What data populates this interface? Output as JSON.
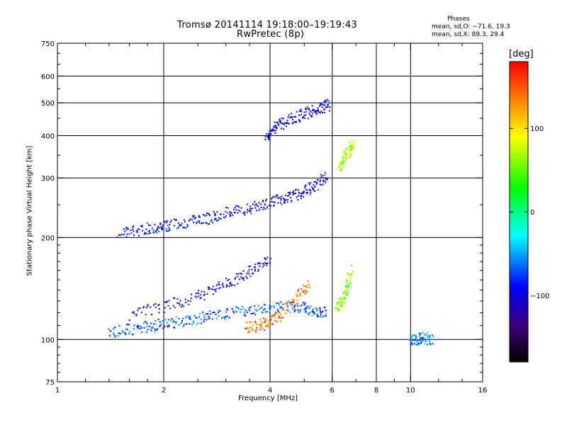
{
  "header": {
    "title_line1": "Tromsø 20141114 19:18:00–19:19:43",
    "title_line2": "RwPretec (8p)",
    "phases_title": "Phases",
    "phases_o": "mean, sd,O: −71.6, 19.3",
    "phases_x": "mean, sd,X:  89.3, 29.4"
  },
  "colorbar": {
    "label": "[deg]",
    "ticks": [
      "100",
      "0",
      "−100"
    ],
    "tick_values": [
      100,
      0,
      -100
    ],
    "range": [
      -180,
      180
    ]
  },
  "chart_data": {
    "type": "scatter",
    "xlabel": "Frequency [MHz]",
    "ylabel": "Stationary phase Virtual Height [km]",
    "x_scale": "log",
    "y_scale": "log",
    "xlim": [
      1,
      16
    ],
    "ylim": [
      75,
      750
    ],
    "x_ticks": [
      1,
      2,
      4,
      6,
      8,
      10,
      16
    ],
    "x_tick_labels": [
      "1",
      "2",
      "4",
      "6",
      "8",
      "10",
      "16"
    ],
    "y_ticks": [
      75,
      100,
      200,
      300,
      400,
      500,
      600,
      750
    ],
    "y_tick_labels": [
      "75",
      "100",
      "200",
      "300",
      "400",
      "500",
      "600",
      "750"
    ],
    "grid_x": [
      2,
      4,
      6,
      8,
      10
    ],
    "grid_y": [
      100,
      200,
      300,
      400,
      500,
      600
    ],
    "grid": true,
    "color_scale": "phase in degrees, rainbow from black (−180) through blue, cyan, green, yellow to red (+180)",
    "trace_segments": [
      {
        "name": "",
        "phase": -95,
        "x": [
          1.5,
          1.7,
          1.9,
          2.1,
          2.4,
          2.7,
          3.0,
          3.4,
          3.8,
          4.2,
          4.6,
          5.0,
          5.4,
          5.8
        ],
        "y": [
          207,
          210,
          214,
          217,
          223,
          228,
          236,
          242,
          250,
          257,
          264,
          272,
          285,
          305
        ]
      },
      {
        "name": "",
        "phase": -70,
        "x": [
          1.4,
          1.6,
          1.8,
          2.0,
          2.3,
          2.6,
          3.0,
          3.5,
          4.0,
          4.5,
          5.0,
          5.4,
          5.8
        ],
        "y": [
          105,
          107,
          109,
          111,
          113,
          116,
          119,
          122,
          124,
          125,
          124,
          121,
          120
        ]
      },
      {
        "name": "",
        "phase": -110,
        "x": [
          1.6,
          2.0,
          2.4,
          2.8,
          3.2,
          3.6,
          4.0
        ],
        "y": [
          118,
          125,
          132,
          140,
          150,
          162,
          175
        ]
      },
      {
        "name": "",
        "phase": -100,
        "x": [
          3.9,
          4.1,
          4.4,
          4.8,
          5.2,
          5.6,
          5.9
        ],
        "y": [
          390,
          420,
          440,
          455,
          470,
          480,
          495
        ]
      },
      {
        "name": "",
        "phase": 60,
        "x": [
          6.2,
          6.4,
          6.6,
          6.8
        ],
        "y": [
          125,
          128,
          140,
          160
        ]
      },
      {
        "name": "",
        "phase": 70,
        "x": [
          6.3,
          6.5,
          6.7,
          6.9
        ],
        "y": [
          320,
          340,
          360,
          380
        ]
      },
      {
        "name": "",
        "phase": 140,
        "x": [
          3.4,
          3.7,
          4.0,
          4.3,
          4.8,
          5.2
        ],
        "y": [
          108,
          110,
          112,
          118,
          135,
          145
        ]
      },
      {
        "name": "",
        "phase": -60,
        "x": [
          10.0,
          10.5,
          11.0,
          11.5
        ],
        "y": [
          100,
          100,
          101,
          100
        ]
      }
    ]
  }
}
